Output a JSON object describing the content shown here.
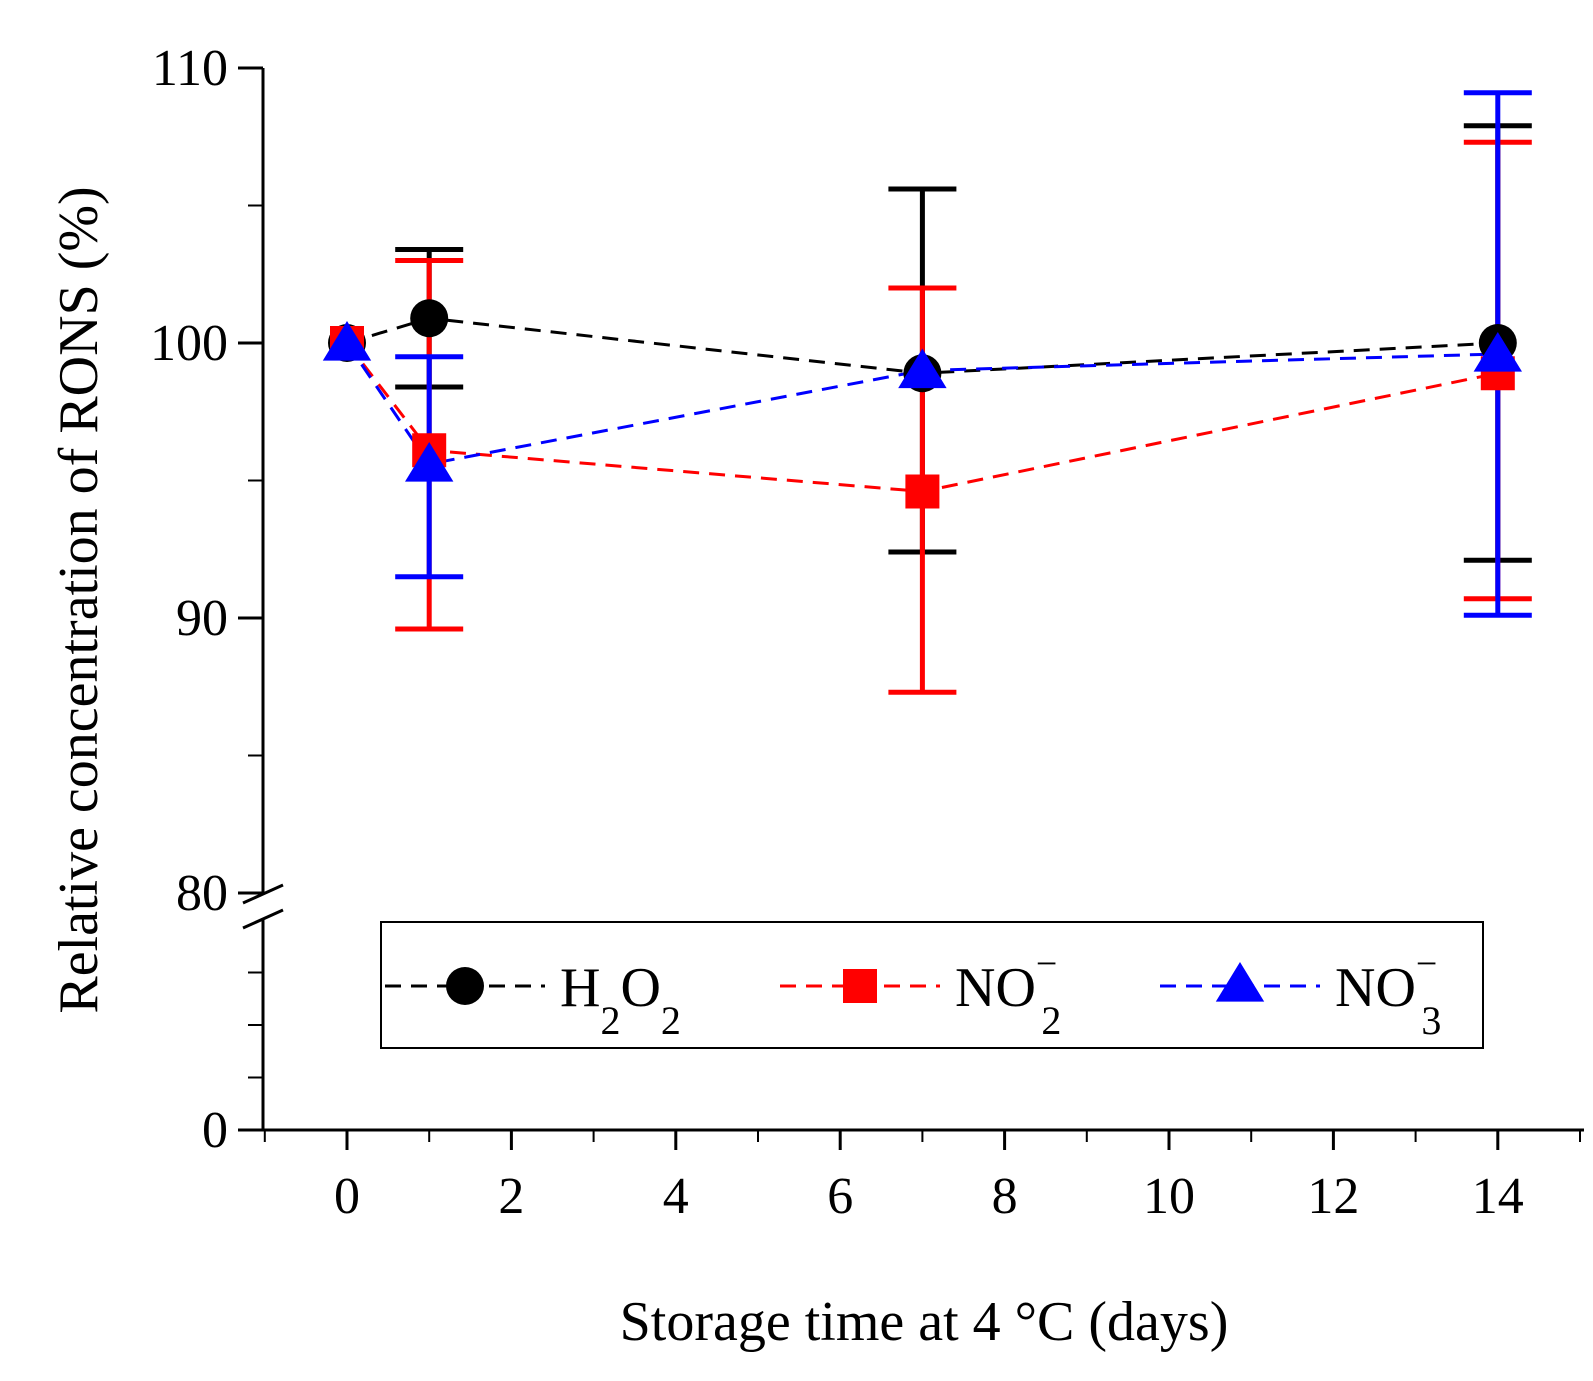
{
  "chart_data": {
    "type": "line",
    "xlabel": "Storage time at 4 °C (days)",
    "ylabel": "Relative concentration of RONS (%)",
    "xlim": [
      -1,
      15
    ],
    "x_ticks": [
      0,
      2,
      4,
      6,
      8,
      10,
      12,
      14
    ],
    "x_tick_labels": [
      "0",
      "2",
      "4",
      "6",
      "8",
      "10",
      "12",
      "14"
    ],
    "y_axis_break": {
      "lower_segment": [
        0,
        80
      ],
      "upper_segment": [
        80,
        110
      ]
    },
    "y_ticks": [
      0,
      80,
      90,
      100,
      110
    ],
    "y_tick_labels": [
      "0",
      "80",
      "90",
      "100",
      "110"
    ],
    "legend_position": "bottom",
    "series": [
      {
        "name": "H2O2",
        "label_main": "H",
        "label_sub1": "2",
        "label_mid": "O",
        "label_sub2": "2",
        "color": "#000000",
        "marker": "circle",
        "x": [
          0,
          1,
          7,
          14
        ],
        "y": [
          100,
          100.9,
          98.9,
          100
        ],
        "err_low": [
          null,
          98.4,
          92.4,
          92.1
        ],
        "err_high": [
          null,
          103.4,
          105.6,
          107.9
        ]
      },
      {
        "name": "NO2-",
        "label_main": "NO",
        "label_sub": "2",
        "label_sup": "−",
        "color": "#ff0000",
        "marker": "square",
        "x": [
          0,
          1,
          7,
          14
        ],
        "y": [
          100,
          96.1,
          94.6,
          98.9
        ],
        "err_low": [
          null,
          89.6,
          87.3,
          90.7
        ],
        "err_high": [
          null,
          103,
          102,
          107.3
        ]
      },
      {
        "name": "NO3-",
        "label_main": "NO",
        "label_sub": "3",
        "label_sup": "−",
        "color": "#0000ff",
        "marker": "triangle",
        "x": [
          0,
          1,
          7,
          14
        ],
        "y": [
          100,
          95.6,
          99,
          99.6
        ],
        "err_low": [
          null,
          91.5,
          null,
          90.1
        ],
        "err_high": [
          null,
          99.5,
          null,
          109.1
        ]
      }
    ]
  }
}
